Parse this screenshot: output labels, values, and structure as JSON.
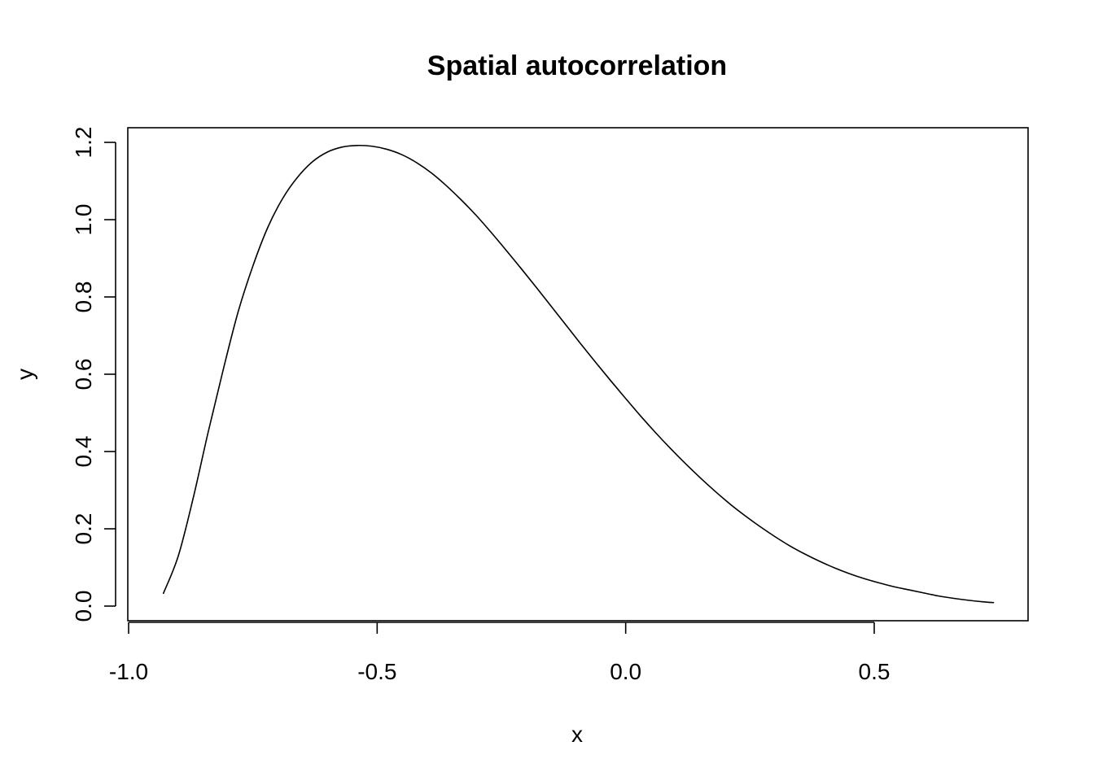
{
  "chart_data": {
    "type": "line",
    "title": "Spatial autocorrelation",
    "xlabel": "x",
    "ylabel": "y",
    "xlim": [
      -1.0,
      0.8
    ],
    "ylim": [
      -0.03,
      1.25
    ],
    "grid": false,
    "legend": "none",
    "x_ticks": [
      {
        "value": -1.0,
        "label": "-1.0"
      },
      {
        "value": -0.5,
        "label": "-0.5"
      },
      {
        "value": 0.0,
        "label": "0.0"
      },
      {
        "value": 0.5,
        "label": "0.5"
      }
    ],
    "y_ticks": [
      {
        "value": 0.0,
        "label": "0.0"
      },
      {
        "value": 0.2,
        "label": "0.2"
      },
      {
        "value": 0.4,
        "label": "0.4"
      },
      {
        "value": 0.6,
        "label": "0.6"
      },
      {
        "value": 0.8,
        "label": "0.8"
      },
      {
        "value": 1.0,
        "label": "1.0"
      },
      {
        "value": 1.2,
        "label": "1.2"
      }
    ],
    "series": [
      {
        "name": "y",
        "color": "#000000",
        "x": [
          -0.93,
          -0.9,
          -0.87,
          -0.84,
          -0.81,
          -0.78,
          -0.75,
          -0.72,
          -0.69,
          -0.66,
          -0.63,
          -0.6,
          -0.57,
          -0.54,
          -0.51,
          -0.48,
          -0.45,
          -0.42,
          -0.39,
          -0.36,
          -0.33,
          -0.3,
          -0.27,
          -0.24,
          -0.21,
          -0.18,
          -0.15,
          -0.12,
          -0.09,
          -0.06,
          -0.03,
          0.0,
          0.03,
          0.06,
          0.09,
          0.12,
          0.15,
          0.18,
          0.21,
          0.24,
          0.27,
          0.3,
          0.33,
          0.36,
          0.39,
          0.42,
          0.45,
          0.48,
          0.51,
          0.54,
          0.57,
          0.6,
          0.63,
          0.66,
          0.69,
          0.72,
          0.74
        ],
        "y": [
          0.033,
          0.13,
          0.28,
          0.45,
          0.61,
          0.76,
          0.88,
          0.98,
          1.055,
          1.11,
          1.15,
          1.175,
          1.188,
          1.192,
          1.19,
          1.182,
          1.168,
          1.147,
          1.12,
          1.087,
          1.05,
          1.01,
          0.966,
          0.92,
          0.873,
          0.825,
          0.776,
          0.727,
          0.678,
          0.63,
          0.583,
          0.537,
          0.492,
          0.449,
          0.408,
          0.369,
          0.332,
          0.297,
          0.264,
          0.234,
          0.206,
          0.18,
          0.156,
          0.135,
          0.116,
          0.099,
          0.084,
          0.071,
          0.06,
          0.05,
          0.042,
          0.034,
          0.026,
          0.02,
          0.015,
          0.011,
          0.009
        ]
      }
    ]
  }
}
